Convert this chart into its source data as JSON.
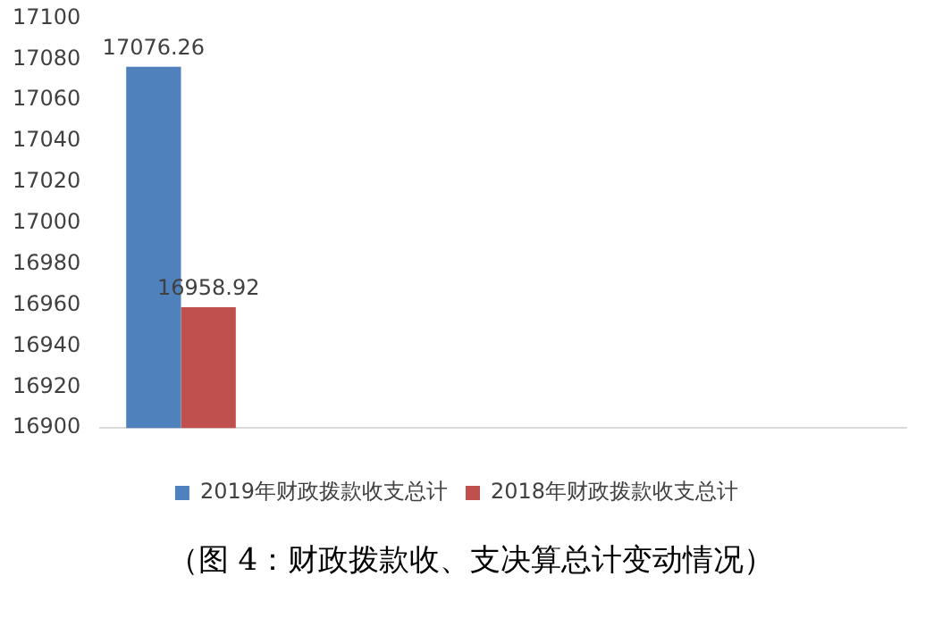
{
  "chart_data": {
    "type": "bar",
    "categories": [
      null,
      null,
      null,
      null,
      null
    ],
    "series": [
      {
        "name": "2019年财政拨款收支总计",
        "color": "#4f81bd",
        "values": [
          17076.26,
          null,
          null,
          null,
          null
        ]
      },
      {
        "name": "2018年财政拨款收支总计",
        "color": "#c0504d",
        "values": [
          16958.92,
          null,
          null,
          null,
          null
        ]
      }
    ],
    "ylim": [
      16900,
      17100
    ],
    "yticks": [
      16900,
      16920,
      16940,
      16960,
      16980,
      17000,
      17020,
      17040,
      17060,
      17080,
      17100
    ],
    "grid": false,
    "legend": "bottom",
    "data_labels": true,
    "annotations": [
      "（图 4：财政拨款收、支决算总计变动情况）"
    ]
  }
}
